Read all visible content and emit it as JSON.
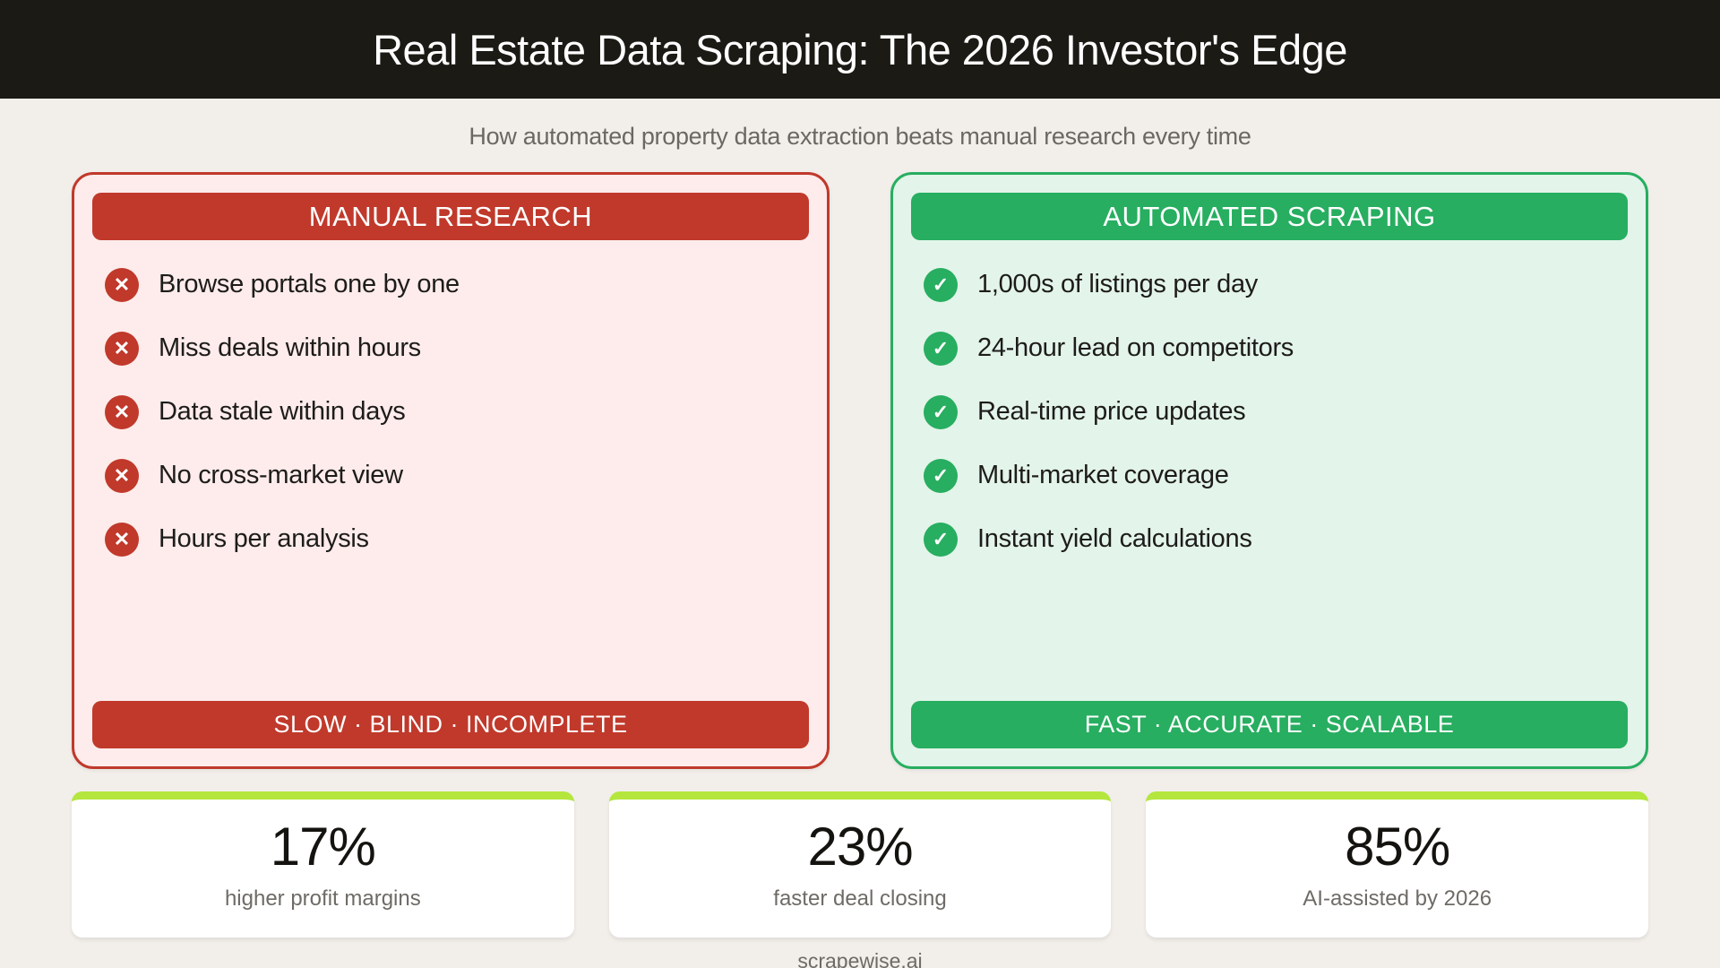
{
  "page": {
    "title": "Real Estate Data Scraping: The 2026 Investor's Edge",
    "subtitle": "How automated property data extraction beats manual research every time",
    "footer": "scrapewise.ai"
  },
  "colors": {
    "topbar_bg": "#1b1a15",
    "page_bg": "#f2eeea",
    "red": "#c0392b",
    "red_panel_bg": "#fdeceb",
    "green": "#27ae60",
    "green_panel_bg": "#e3f4ea",
    "lime_accent": "#b4e63e",
    "text_dark": "#1d1c1a",
    "text_gray": "#6b6862"
  },
  "icons": {
    "cross": "✕",
    "check": "✓"
  },
  "comparison": {
    "manual": {
      "title": "MANUAL RESEARCH",
      "items": [
        "Browse portals one by one",
        "Miss deals within hours",
        "Data stale within days",
        "No cross-market view",
        "Hours per analysis"
      ],
      "footer": "SLOW · BLIND · INCOMPLETE"
    },
    "automated": {
      "title": "AUTOMATED SCRAPING",
      "items": [
        "1,000s of listings per day",
        "24-hour lead on competitors",
        "Real-time price updates",
        "Multi-market coverage",
        "Instant yield calculations"
      ],
      "footer": "FAST · ACCURATE · SCALABLE"
    }
  },
  "stats": [
    {
      "value": "17%",
      "label": "higher profit margins"
    },
    {
      "value": "23%",
      "label": "faster deal closing"
    },
    {
      "value": "85%",
      "label": "AI-assisted by 2026"
    }
  ]
}
